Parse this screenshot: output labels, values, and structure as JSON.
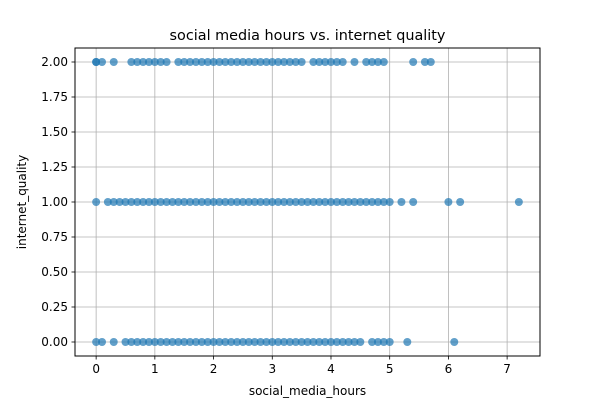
{
  "chart_data": {
    "type": "scatter",
    "title": "social media hours vs. internet quality",
    "xlabel": "social_media_hours",
    "ylabel": "internet_quality",
    "xlim": [
      -0.36,
      7.56
    ],
    "ylim": [
      -0.1,
      2.1
    ],
    "xticks": [
      0,
      1,
      2,
      3,
      4,
      5,
      6,
      7
    ],
    "xtick_labels": [
      "0",
      "1",
      "2",
      "3",
      "4",
      "5",
      "6",
      "7"
    ],
    "yticks": [
      0,
      0.25,
      0.5,
      0.75,
      1,
      1.25,
      1.5,
      1.75,
      2
    ],
    "ytick_labels": [
      "0.00",
      "0.25",
      "0.50",
      "0.75",
      "1.00",
      "1.25",
      "1.50",
      "1.75",
      "2.00"
    ],
    "grid": true,
    "marker_color": "#1f77b4",
    "marker_alpha": 0.7,
    "series": [
      {
        "name": "",
        "x": [
          0.0,
          0.0,
          0.1,
          0.3,
          0.6,
          0.7,
          0.8,
          0.9,
          1.0,
          1.1,
          1.2,
          1.4,
          1.5,
          1.6,
          1.7,
          1.8,
          1.9,
          2.0,
          2.1,
          2.2,
          2.3,
          2.4,
          2.5,
          2.6,
          2.7,
          2.8,
          2.9,
          3.0,
          3.1,
          3.2,
          3.3,
          3.4,
          3.5,
          3.7,
          3.8,
          3.9,
          4.0,
          4.1,
          4.2,
          4.4,
          4.6,
          4.7,
          4.8,
          4.9,
          5.4,
          5.6,
          5.7,
          0.0,
          0.2,
          0.3,
          0.4,
          0.5,
          0.6,
          0.7,
          0.8,
          0.9,
          1.0,
          1.1,
          1.2,
          1.3,
          1.4,
          1.5,
          1.6,
          1.7,
          1.8,
          1.9,
          2.0,
          2.1,
          2.2,
          2.3,
          2.4,
          2.5,
          2.6,
          2.7,
          2.8,
          2.9,
          3.0,
          3.1,
          3.2,
          3.3,
          3.4,
          3.5,
          3.6,
          3.7,
          3.8,
          3.9,
          4.0,
          4.1,
          4.2,
          4.3,
          4.4,
          4.5,
          4.6,
          4.7,
          4.8,
          4.9,
          5.0,
          5.2,
          5.4,
          6.0,
          6.2,
          7.2,
          0.0,
          0.1,
          0.3,
          0.5,
          0.6,
          0.7,
          0.8,
          0.9,
          1.0,
          1.1,
          1.2,
          1.3,
          1.4,
          1.5,
          1.6,
          1.7,
          1.8,
          1.9,
          2.0,
          2.1,
          2.2,
          2.3,
          2.4,
          2.5,
          2.6,
          2.7,
          2.8,
          2.9,
          3.0,
          3.1,
          3.2,
          3.3,
          3.4,
          3.5,
          3.6,
          3.7,
          3.8,
          3.9,
          4.0,
          4.1,
          4.2,
          4.3,
          4.4,
          4.5,
          4.7,
          4.8,
          4.9,
          5.0,
          5.3,
          6.1
        ],
        "y": [
          2,
          2,
          2,
          2,
          2,
          2,
          2,
          2,
          2,
          2,
          2,
          2,
          2,
          2,
          2,
          2,
          2,
          2,
          2,
          2,
          2,
          2,
          2,
          2,
          2,
          2,
          2,
          2,
          2,
          2,
          2,
          2,
          2,
          2,
          2,
          2,
          2,
          2,
          2,
          2,
          2,
          2,
          2,
          2,
          2,
          2,
          2,
          1,
          1,
          1,
          1,
          1,
          1,
          1,
          1,
          1,
          1,
          1,
          1,
          1,
          1,
          1,
          1,
          1,
          1,
          1,
          1,
          1,
          1,
          1,
          1,
          1,
          1,
          1,
          1,
          1,
          1,
          1,
          1,
          1,
          1,
          1,
          1,
          1,
          1,
          1,
          1,
          1,
          1,
          1,
          1,
          1,
          1,
          1,
          1,
          1,
          1,
          1,
          1,
          1,
          1,
          1,
          0,
          0,
          0,
          0,
          0,
          0,
          0,
          0,
          0,
          0,
          0,
          0,
          0,
          0,
          0,
          0,
          0,
          0,
          0,
          0,
          0,
          0,
          0,
          0,
          0,
          0,
          0,
          0,
          0,
          0,
          0,
          0,
          0,
          0,
          0,
          0,
          0,
          0,
          0,
          0,
          0,
          0,
          0,
          0,
          0,
          0,
          0,
          0,
          0,
          0
        ]
      }
    ]
  }
}
